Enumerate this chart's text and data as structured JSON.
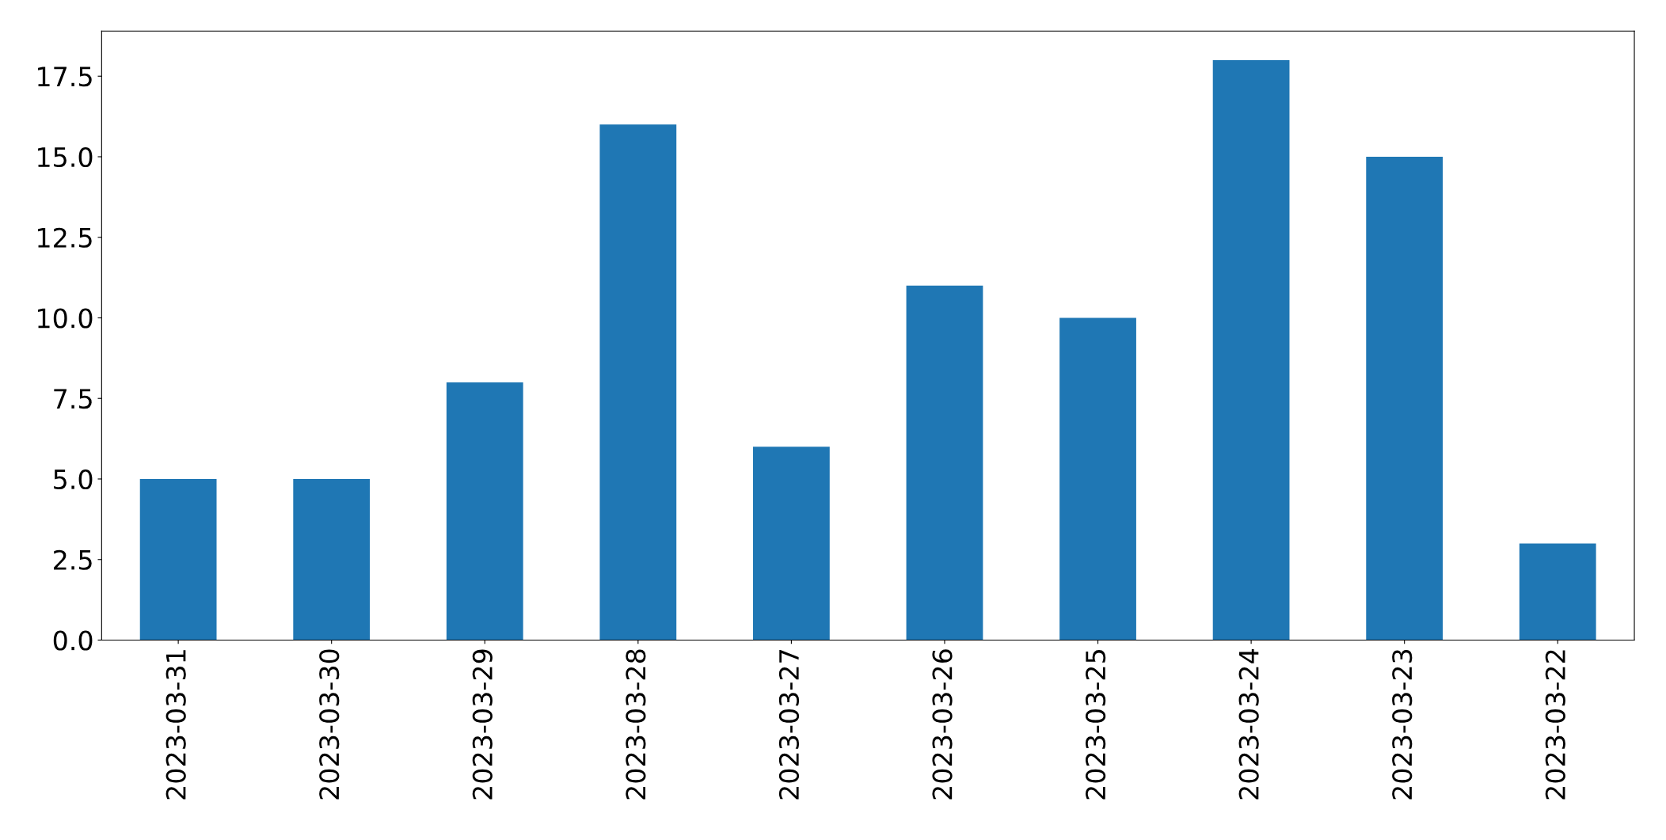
{
  "chart_data": {
    "type": "bar",
    "categories": [
      "2023-03-31",
      "2023-03-30",
      "2023-03-29",
      "2023-03-28",
      "2023-03-27",
      "2023-03-26",
      "2023-03-25",
      "2023-03-24",
      "2023-03-23",
      "2023-03-22"
    ],
    "values": [
      5,
      5,
      8,
      16,
      6,
      11,
      10,
      18,
      15,
      3
    ],
    "color": "#1f77b4",
    "ylim": [
      0,
      18.9
    ],
    "yticks": [
      {
        "value": 0,
        "label": "0.0"
      },
      {
        "value": 2.5,
        "label": "2.5"
      },
      {
        "value": 5,
        "label": "5.0"
      },
      {
        "value": 7.5,
        "label": "7.5"
      },
      {
        "value": 10,
        "label": "10.0"
      },
      {
        "value": 12.5,
        "label": "12.5"
      },
      {
        "value": 15,
        "label": "15.0"
      },
      {
        "value": 17.5,
        "label": "17.5"
      }
    ],
    "grid": false
  }
}
